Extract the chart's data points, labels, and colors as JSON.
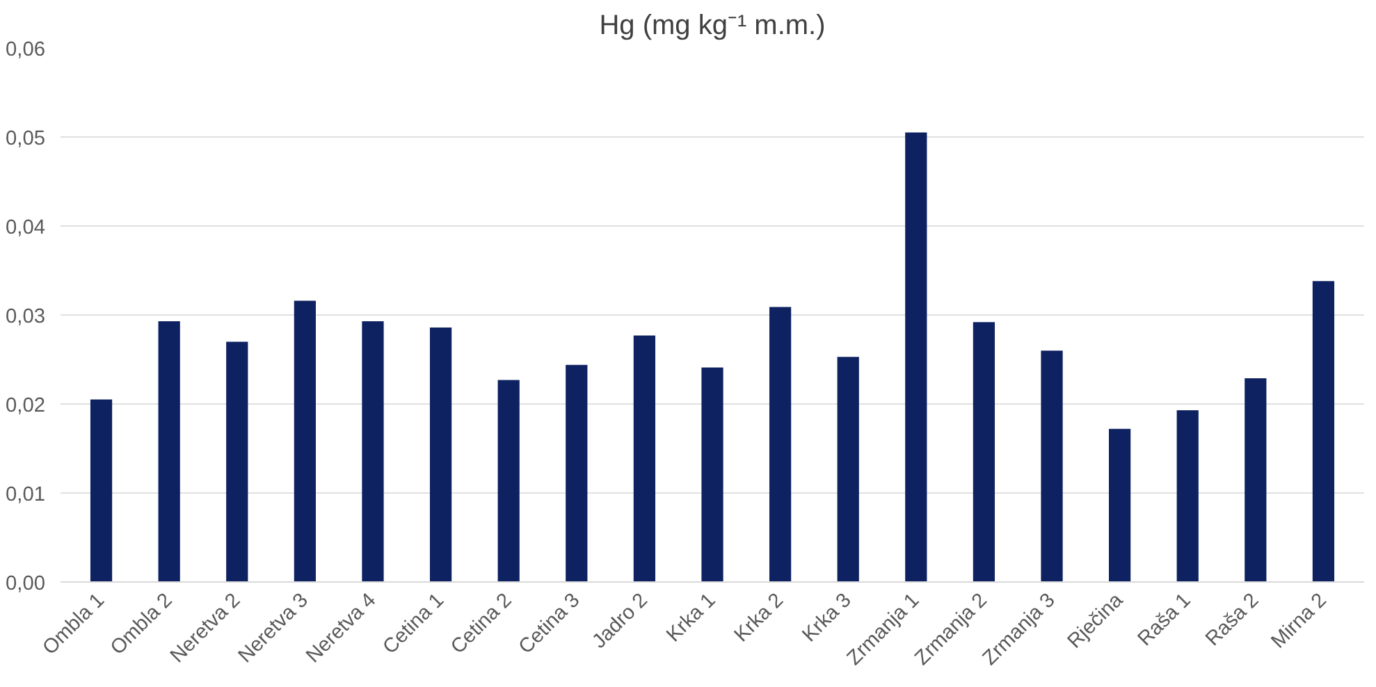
{
  "chart_data": {
    "type": "bar",
    "title": "Hg (mg kg⁻¹ m.m.)",
    "categories": [
      "Ombla 1",
      "Ombla 2",
      "Neretva 2",
      "Neretva 3",
      "Neretva 4",
      "Cetina 1",
      "Cetina 2",
      "Cetina 3",
      "Jadro 2",
      "Krka 1",
      "Krka 2",
      "Krka 3",
      "Zrmanja 1",
      "Zrmanja 2",
      "Zrmanja 3",
      "Rječina",
      "Raša 1",
      "Raša 2",
      "Mirna 2"
    ],
    "values": [
      0.0205,
      0.0293,
      0.027,
      0.0316,
      0.0293,
      0.0286,
      0.0227,
      0.0244,
      0.0277,
      0.0241,
      0.0309,
      0.0253,
      0.0505,
      0.0292,
      0.026,
      0.0172,
      0.0193,
      0.0229,
      0.0338
    ],
    "color": "#0e2262",
    "ylim": [
      0,
      0.06
    ],
    "yticks": [
      {
        "value": 0,
        "label": "0,00"
      },
      {
        "value": 0.01,
        "label": "0,01"
      },
      {
        "value": 0.02,
        "label": "0,02"
      },
      {
        "value": 0.03,
        "label": "0,03"
      },
      {
        "value": 0.04,
        "label": "0,04"
      },
      {
        "value": 0.05,
        "label": "0,05"
      },
      {
        "value": 0.06,
        "label": "0,06"
      }
    ],
    "grid": "y"
  }
}
